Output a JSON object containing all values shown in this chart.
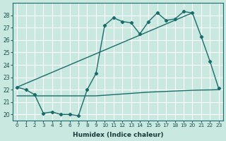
{
  "xlabel": "Humidex (Indice chaleur)",
  "background_color": "#c8e8e0",
  "grid_color": "#ffffff",
  "line_color": "#1a6b6b",
  "xlim": [
    -0.5,
    23.5
  ],
  "ylim": [
    19.5,
    29.0
  ],
  "yticks": [
    20,
    21,
    22,
    23,
    24,
    25,
    26,
    27,
    28
  ],
  "xticks": [
    0,
    1,
    2,
    3,
    4,
    5,
    6,
    7,
    8,
    9,
    10,
    11,
    12,
    13,
    14,
    15,
    16,
    17,
    18,
    19,
    20,
    21,
    22,
    23
  ],
  "main_x": [
    0,
    1,
    2,
    3,
    4,
    5,
    6,
    7,
    8,
    9,
    10,
    11,
    12,
    13,
    14,
    15,
    16,
    17,
    18,
    19,
    20,
    21,
    22,
    23
  ],
  "main_y": [
    22.2,
    22.0,
    21.6,
    20.1,
    20.2,
    20.0,
    20.0,
    19.9,
    22.0,
    23.3,
    27.2,
    27.8,
    27.5,
    27.4,
    26.5,
    27.5,
    28.2,
    27.6,
    27.7,
    28.3,
    28.2,
    26.3,
    24.3,
    22.1
  ],
  "trend_x": [
    0,
    20
  ],
  "trend_y": [
    22.2,
    28.2
  ],
  "flat_x": [
    0,
    1,
    2,
    3,
    4,
    5,
    6,
    7,
    8,
    9,
    10,
    11,
    12,
    13,
    14,
    15,
    16,
    17,
    18,
    19,
    20,
    21,
    22,
    23
  ],
  "flat_y": [
    21.5,
    21.5,
    21.5,
    21.5,
    21.5,
    21.5,
    21.5,
    21.5,
    21.5,
    21.5,
    21.55,
    21.6,
    21.65,
    21.7,
    21.75,
    21.8,
    21.83,
    21.86,
    21.89,
    21.92,
    21.95,
    21.97,
    21.98,
    22.0
  ]
}
